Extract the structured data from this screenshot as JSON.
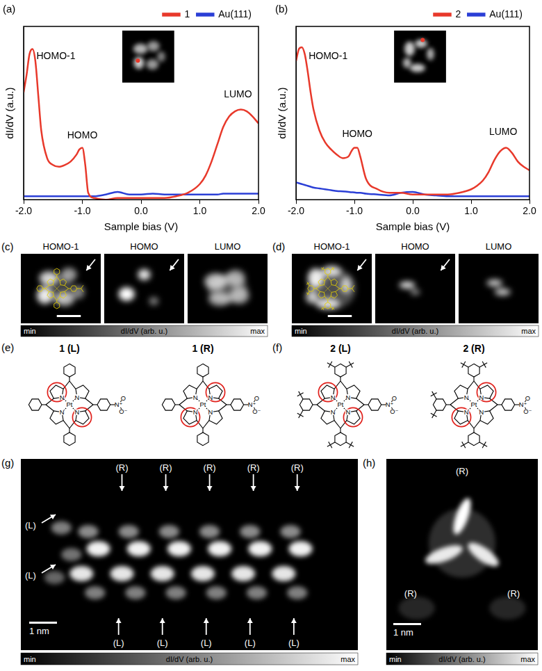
{
  "chart_data": [
    {
      "type": "line",
      "panel_label": "(a)",
      "xlabel": "Sample bias (V)",
      "ylabel": "dI/dV (a.u.)",
      "x": [
        -2.0,
        -1.95,
        -1.9,
        -1.85,
        -1.8,
        -1.75,
        -1.7,
        -1.6,
        -1.5,
        -1.4,
        -1.3,
        -1.2,
        -1.1,
        -1.05,
        -1.0,
        -0.95,
        -0.9,
        -0.8,
        -0.6,
        -0.4,
        -0.2,
        0.0,
        0.2,
        0.4,
        0.6,
        0.8,
        1.0,
        1.1,
        1.2,
        1.3,
        1.4,
        1.5,
        1.6,
        1.7,
        1.8,
        1.9,
        2.0
      ],
      "series": [
        {
          "name": "1",
          "color": "#e8392b",
          "values": [
            0.62,
            0.72,
            0.84,
            0.87,
            0.8,
            0.6,
            0.4,
            0.24,
            0.2,
            0.19,
            0.2,
            0.22,
            0.26,
            0.29,
            0.3,
            0.2,
            0.04,
            0.01,
            0.0,
            0.01,
            0.01,
            0.01,
            0.01,
            0.01,
            0.02,
            0.04,
            0.09,
            0.14,
            0.22,
            0.32,
            0.42,
            0.48,
            0.51,
            0.52,
            0.51,
            0.48,
            0.44
          ]
        },
        {
          "name": "Au(111)",
          "color": "#2b3fd6",
          "values": [
            0.02,
            0.02,
            0.02,
            0.02,
            0.02,
            0.02,
            0.02,
            0.02,
            0.02,
            0.02,
            0.02,
            0.02,
            0.02,
            0.02,
            0.02,
            0.02,
            0.02,
            0.02,
            0.03,
            0.045,
            0.03,
            0.03,
            0.035,
            0.03,
            0.03,
            0.03,
            0.03,
            0.03,
            0.03,
            0.03,
            0.035,
            0.035,
            0.035,
            0.035,
            0.035,
            0.035,
            0.035
          ]
        }
      ],
      "xlim": [
        -2,
        2
      ],
      "xticks": [
        {
          "value": -2,
          "label": "-2.0"
        },
        {
          "value": -1,
          "label": "-1.0"
        },
        {
          "value": 0,
          "label": "0.0"
        },
        {
          "value": 1,
          "label": "1.0"
        },
        {
          "value": 2,
          "label": "2.0"
        }
      ],
      "ylim": [
        0,
        1
      ],
      "tick_labels": "x",
      "grid": false,
      "legend": "top",
      "annotations": [
        {
          "text": "HOMO-1",
          "x": -1.45,
          "y": 0.8
        },
        {
          "text": "HOMO",
          "x": -1.0,
          "y": 0.34
        },
        {
          "text": "LUMO",
          "x": 1.65,
          "y": 0.58
        }
      ]
    },
    {
      "type": "line",
      "panel_label": "(b)",
      "xlabel": "Sample bias (V)",
      "ylabel": "dI/dV (a.u.)",
      "x": [
        -2.0,
        -1.95,
        -1.9,
        -1.85,
        -1.8,
        -1.75,
        -1.7,
        -1.6,
        -1.5,
        -1.4,
        -1.3,
        -1.2,
        -1.1,
        -1.05,
        -1.0,
        -0.95,
        -0.9,
        -0.8,
        -0.6,
        -0.4,
        -0.2,
        0.0,
        0.2,
        0.4,
        0.6,
        0.8,
        1.0,
        1.1,
        1.2,
        1.3,
        1.4,
        1.5,
        1.6,
        1.7,
        1.8,
        1.9,
        2.0
      ],
      "series": [
        {
          "name": "2",
          "color": "#e8392b",
          "values": [
            0.8,
            0.87,
            0.88,
            0.84,
            0.74,
            0.62,
            0.52,
            0.4,
            0.33,
            0.29,
            0.26,
            0.24,
            0.25,
            0.28,
            0.3,
            0.3,
            0.25,
            0.12,
            0.06,
            0.04,
            0.04,
            0.03,
            0.03,
            0.03,
            0.03,
            0.04,
            0.06,
            0.08,
            0.11,
            0.16,
            0.23,
            0.28,
            0.3,
            0.27,
            0.22,
            0.19,
            0.17
          ]
        },
        {
          "name": "Au(111)",
          "color": "#2b3fd6",
          "values": [
            0.1,
            0.095,
            0.09,
            0.085,
            0.08,
            0.075,
            0.07,
            0.065,
            0.06,
            0.055,
            0.05,
            0.048,
            0.045,
            0.043,
            0.042,
            0.04,
            0.04,
            0.035,
            0.03,
            0.025,
            0.04,
            0.045,
            0.03,
            0.025,
            0.02,
            0.02,
            0.02,
            0.02,
            0.02,
            0.02,
            0.02,
            0.02,
            0.02,
            0.02,
            0.02,
            0.02,
            0.02
          ]
        }
      ],
      "xlim": [
        -2,
        2
      ],
      "xticks": [
        {
          "value": -2,
          "label": "-2.0"
        },
        {
          "value": -1,
          "label": "-1.0"
        },
        {
          "value": 0,
          "label": "0.0"
        },
        {
          "value": 1,
          "label": "1.0"
        },
        {
          "value": 2,
          "label": "2.0"
        }
      ],
      "ylim": [
        0,
        1
      ],
      "tick_labels": "x",
      "grid": false,
      "legend": "top",
      "annotations": [
        {
          "text": "HOMO-1",
          "x": -1.45,
          "y": 0.8
        },
        {
          "text": "HOMO",
          "x": -0.95,
          "y": 0.35
        },
        {
          "text": "LUMO",
          "x": 1.55,
          "y": 0.36
        }
      ]
    }
  ],
  "maps": {
    "c": {
      "panel_label": "(c)",
      "titles": [
        "HOMO-1",
        "HOMO",
        "LUMO"
      ],
      "colorbar": [
        "min",
        "dI/dV (arb. u.)",
        "max"
      ]
    },
    "d": {
      "panel_label": "(d)",
      "titles": [
        "HOMO-1",
        "HOMO",
        "LUMO"
      ],
      "colorbar": [
        "min",
        "dI/dV (arb. u.)",
        "max"
      ]
    },
    "g": {
      "panel_label": "(g)",
      "top_labels": [
        "(R)",
        "(R)",
        "(R)",
        "(R)",
        "(R)"
      ],
      "bottom_labels": [
        "(L)",
        "(L)",
        "(L)",
        "(L)",
        "(L)"
      ],
      "left_labels": [
        "(L)",
        "(L)"
      ],
      "scale_bar": "1 nm",
      "colorbar": [
        "min",
        "dI/dV (arb. u.)",
        "max"
      ]
    },
    "h": {
      "panel_label": "(h)",
      "labels": [
        "(R)",
        "(R)",
        "(R)"
      ],
      "scale_bar": "1 nm",
      "colorbar": [
        "min",
        "dI/dV (arb. u.)",
        "max"
      ]
    }
  },
  "structures": {
    "e": {
      "panel_label": "(e)",
      "molecules": [
        {
          "label": "1 (L)",
          "atoms": [
            "N",
            "N",
            "N",
            "N",
            "Pt",
            "N⁺",
            "O",
            "O⁻"
          ]
        },
        {
          "label": "1 (R)",
          "atoms": [
            "N",
            "N",
            "N",
            "N",
            "Pt",
            "N⁺",
            "O",
            "O⁻"
          ]
        }
      ]
    },
    "f": {
      "panel_label": "(f)",
      "molecules": [
        {
          "label": "2 (L)",
          "atoms": [
            "N",
            "N",
            "N",
            "N",
            "Pt",
            "N⁺",
            "O",
            "O⁻"
          ]
        },
        {
          "label": "2 (R)",
          "atoms": [
            "N",
            "N",
            "N",
            "N",
            "Pt",
            "N⁺",
            "O",
            "O⁻"
          ]
        }
      ]
    }
  }
}
